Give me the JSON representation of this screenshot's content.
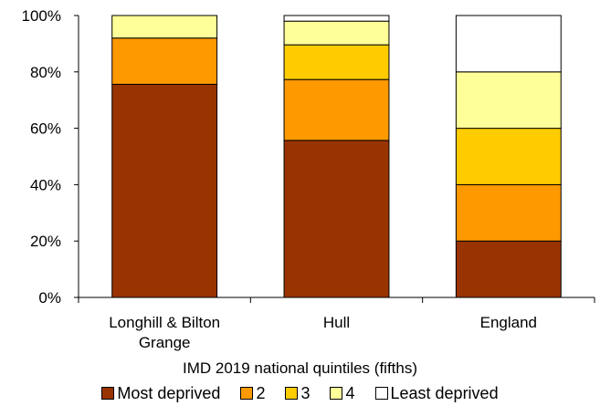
{
  "chart_data": {
    "type": "bar",
    "stacked": true,
    "categories": [
      "Longhill & Bilton Grange",
      "Hull",
      "England"
    ],
    "series": [
      {
        "name": "Most deprived",
        "color": "#993300",
        "values": [
          75.6,
          55.7,
          20
        ]
      },
      {
        "name": "2",
        "color": "#FF9900",
        "values": [
          16.4,
          21.6,
          20
        ]
      },
      {
        "name": "3",
        "color": "#FFCC00",
        "values": [
          0,
          12.3,
          20
        ]
      },
      {
        "name": "4",
        "color": "#FFFF99",
        "values": [
          8.0,
          8.4,
          20
        ]
      },
      {
        "name": "Least deprived",
        "color": "#FFFFFF",
        "values": [
          0,
          2.0,
          20
        ]
      }
    ],
    "xlabel": "IMD 2019 national quintiles (fifths)",
    "ylabel": "",
    "ylim": [
      0,
      100
    ],
    "yticks": [
      "0%",
      "20%",
      "40%",
      "60%",
      "80%",
      "100%"
    ],
    "grid": false,
    "legend_position": "bottom"
  }
}
